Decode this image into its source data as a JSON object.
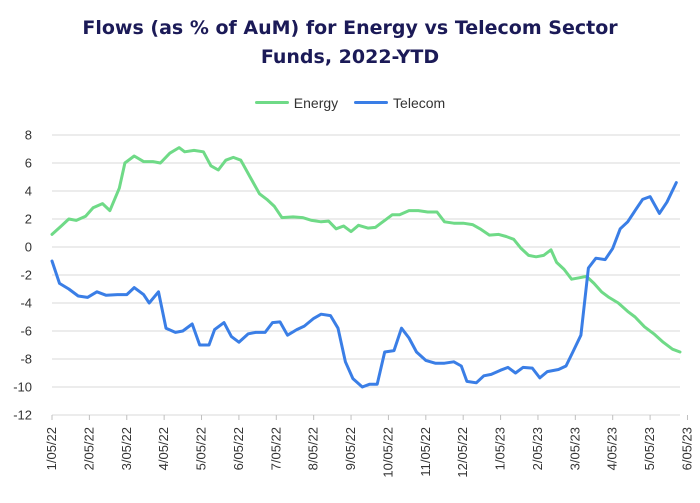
{
  "title_line1": "Flows (as % of AuM) for Energy vs Telecom Sector",
  "title_line2": "Funds, 2022-YTD",
  "chart_data": {
    "type": "line",
    "title": "Flows (as % of AuM) for Energy vs Telecom Sector Funds, 2022-YTD",
    "xlabel": "",
    "ylabel": "",
    "ylim": [
      -12,
      8
    ],
    "yticks": [
      8,
      6,
      4,
      2,
      0,
      -2,
      -4,
      -6,
      -8,
      -10,
      -12
    ],
    "xtick_labels": [
      "1/05/22",
      "2/05/22",
      "3/05/22",
      "4/05/22",
      "5/05/22",
      "6/05/22",
      "7/05/22",
      "8/05/22",
      "9/05/22",
      "10/05/22",
      "11/05/22",
      "12/05/22",
      "1/05/23",
      "2/05/23",
      "3/05/23",
      "4/05/23",
      "5/05/23",
      "6/05/23"
    ],
    "x_note": "x values are positions in months from 1/05/22",
    "grid": true,
    "legend": "top",
    "series": [
      {
        "name": "Energy",
        "color": "#6fda87",
        "points": [
          [
            0.0,
            0.9
          ],
          [
            0.25,
            1.5
          ],
          [
            0.45,
            2.0
          ],
          [
            0.65,
            1.9
          ],
          [
            0.9,
            2.2
          ],
          [
            1.1,
            2.8
          ],
          [
            1.35,
            3.1
          ],
          [
            1.55,
            2.6
          ],
          [
            1.8,
            4.2
          ],
          [
            1.95,
            6.0
          ],
          [
            2.2,
            6.5
          ],
          [
            2.45,
            6.1
          ],
          [
            2.7,
            6.1
          ],
          [
            2.9,
            6.0
          ],
          [
            3.15,
            6.7
          ],
          [
            3.4,
            7.1
          ],
          [
            3.55,
            6.8
          ],
          [
            3.8,
            6.9
          ],
          [
            4.05,
            6.8
          ],
          [
            4.25,
            5.8
          ],
          [
            4.45,
            5.5
          ],
          [
            4.65,
            6.2
          ],
          [
            4.85,
            6.4
          ],
          [
            5.05,
            6.2
          ],
          [
            5.3,
            5.0
          ],
          [
            5.55,
            3.8
          ],
          [
            5.75,
            3.4
          ],
          [
            5.95,
            2.9
          ],
          [
            6.15,
            2.1
          ],
          [
            6.45,
            2.15
          ],
          [
            6.7,
            2.1
          ],
          [
            6.95,
            1.9
          ],
          [
            7.2,
            1.8
          ],
          [
            7.4,
            1.85
          ],
          [
            7.6,
            1.3
          ],
          [
            7.8,
            1.5
          ],
          [
            8.0,
            1.1
          ],
          [
            8.2,
            1.55
          ],
          [
            8.45,
            1.35
          ],
          [
            8.65,
            1.4
          ],
          [
            8.9,
            1.9
          ],
          [
            9.1,
            2.3
          ],
          [
            9.3,
            2.3
          ],
          [
            9.55,
            2.6
          ],
          [
            9.8,
            2.6
          ],
          [
            10.05,
            2.5
          ],
          [
            10.3,
            2.5
          ],
          [
            10.5,
            1.8
          ],
          [
            10.75,
            1.7
          ],
          [
            11.0,
            1.7
          ],
          [
            11.25,
            1.6
          ],
          [
            11.45,
            1.3
          ],
          [
            11.7,
            0.85
          ],
          [
            11.95,
            0.9
          ],
          [
            12.15,
            0.75
          ],
          [
            12.35,
            0.55
          ],
          [
            12.55,
            -0.1
          ],
          [
            12.75,
            -0.6
          ],
          [
            12.95,
            -0.7
          ],
          [
            13.15,
            -0.6
          ],
          [
            13.35,
            -0.2
          ],
          [
            13.5,
            -1.1
          ],
          [
            13.7,
            -1.6
          ],
          [
            13.9,
            -2.3
          ],
          [
            14.1,
            -2.2
          ],
          [
            14.3,
            -2.1
          ],
          [
            14.5,
            -2.6
          ],
          [
            14.7,
            -3.2
          ],
          [
            14.9,
            -3.6
          ],
          [
            15.15,
            -4.0
          ],
          [
            15.4,
            -4.6
          ],
          [
            15.6,
            -5.0
          ],
          [
            15.85,
            -5.7
          ],
          [
            16.1,
            -6.2
          ],
          [
            16.35,
            -6.8
          ],
          [
            16.6,
            -7.3
          ],
          [
            16.8,
            -7.5
          ]
        ]
      },
      {
        "name": "Telecom",
        "color": "#3a7ee6",
        "points": [
          [
            0.0,
            -1.0
          ],
          [
            0.2,
            -2.6
          ],
          [
            0.45,
            -3.0
          ],
          [
            0.7,
            -3.5
          ],
          [
            0.95,
            -3.6
          ],
          [
            1.2,
            -3.2
          ],
          [
            1.45,
            -3.45
          ],
          [
            1.75,
            -3.4
          ],
          [
            2.0,
            -3.4
          ],
          [
            2.2,
            -2.9
          ],
          [
            2.45,
            -3.4
          ],
          [
            2.6,
            -4.0
          ],
          [
            2.85,
            -3.2
          ],
          [
            3.05,
            -5.8
          ],
          [
            3.3,
            -6.1
          ],
          [
            3.5,
            -6.0
          ],
          [
            3.75,
            -5.5
          ],
          [
            3.95,
            -7.0
          ],
          [
            4.2,
            -7.0
          ],
          [
            4.35,
            -5.9
          ],
          [
            4.6,
            -5.4
          ],
          [
            4.8,
            -6.4
          ],
          [
            5.0,
            -6.8
          ],
          [
            5.25,
            -6.2
          ],
          [
            5.45,
            -6.1
          ],
          [
            5.7,
            -6.1
          ],
          [
            5.9,
            -5.4
          ],
          [
            6.1,
            -5.35
          ],
          [
            6.3,
            -6.3
          ],
          [
            6.55,
            -5.9
          ],
          [
            6.75,
            -5.65
          ],
          [
            7.0,
            -5.1
          ],
          [
            7.2,
            -4.8
          ],
          [
            7.45,
            -4.9
          ],
          [
            7.65,
            -5.8
          ],
          [
            7.85,
            -8.2
          ],
          [
            8.05,
            -9.4
          ],
          [
            8.3,
            -10.0
          ],
          [
            8.5,
            -9.8
          ],
          [
            8.7,
            -9.8
          ],
          [
            8.9,
            -7.5
          ],
          [
            9.15,
            -7.4
          ],
          [
            9.35,
            -5.8
          ],
          [
            9.55,
            -6.5
          ],
          [
            9.75,
            -7.5
          ],
          [
            10.0,
            -8.1
          ],
          [
            10.25,
            -8.3
          ],
          [
            10.5,
            -8.3
          ],
          [
            10.75,
            -8.2
          ],
          [
            10.95,
            -8.5
          ],
          [
            11.1,
            -9.6
          ],
          [
            11.35,
            -9.7
          ],
          [
            11.55,
            -9.2
          ],
          [
            11.75,
            -9.1
          ],
          [
            12.0,
            -8.8
          ],
          [
            12.2,
            -8.6
          ],
          [
            12.4,
            -9.0
          ],
          [
            12.6,
            -8.6
          ],
          [
            12.85,
            -8.65
          ],
          [
            13.05,
            -9.35
          ],
          [
            13.25,
            -8.9
          ],
          [
            13.55,
            -8.75
          ],
          [
            13.75,
            -8.5
          ],
          [
            13.95,
            -7.4
          ],
          [
            14.15,
            -6.3
          ],
          [
            14.35,
            -1.5
          ],
          [
            14.55,
            -0.8
          ],
          [
            14.8,
            -0.9
          ],
          [
            15.0,
            -0.1
          ],
          [
            15.2,
            1.3
          ],
          [
            15.4,
            1.8
          ],
          [
            15.6,
            2.6
          ],
          [
            15.8,
            3.4
          ],
          [
            16.0,
            3.6
          ],
          [
            16.25,
            2.4
          ],
          [
            16.45,
            3.2
          ],
          [
            16.7,
            4.6
          ]
        ]
      }
    ]
  }
}
